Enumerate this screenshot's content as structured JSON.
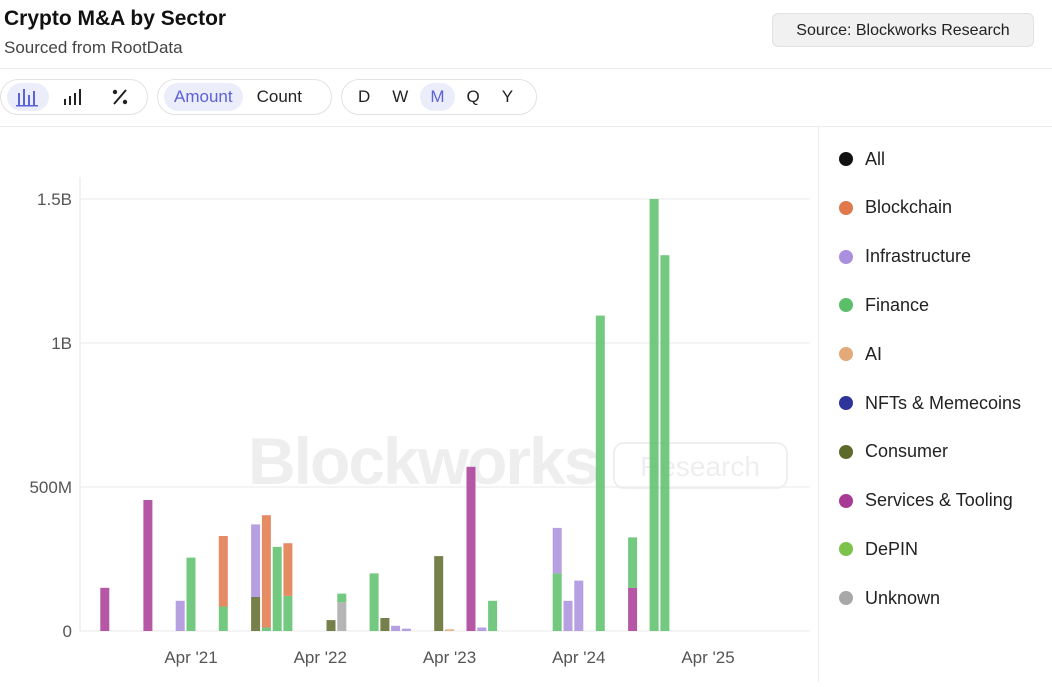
{
  "header": {
    "title": "Crypto M&A by Sector",
    "subtitle": "Sourced from RootData",
    "source_badge": "Source: Blockworks Research"
  },
  "toolbar": {
    "chart_modes": [
      {
        "icon": "grouped-bar-chart-icon",
        "active": true
      },
      {
        "icon": "bar-chart-icon",
        "active": false
      },
      {
        "icon": "percent-icon",
        "active": false
      }
    ],
    "metric_options": [
      {
        "label": "Amount",
        "active": true
      },
      {
        "label": "Count",
        "active": false
      }
    ],
    "period_options": [
      {
        "label": "D",
        "active": false
      },
      {
        "label": "W",
        "active": false
      },
      {
        "label": "M",
        "active": true
      },
      {
        "label": "Q",
        "active": false
      },
      {
        "label": "Y",
        "active": false
      }
    ]
  },
  "watermark": {
    "brand": "Blockworks",
    "tag": "Research"
  },
  "legend": [
    {
      "label": "All",
      "color": "#111111"
    },
    {
      "label": "Blockchain",
      "color": "#e0784a"
    },
    {
      "label": "Infrastructure",
      "color": "#a98fdd"
    },
    {
      "label": "Finance",
      "color": "#5bbf6a"
    },
    {
      "label": "AI",
      "color": "#e3a979"
    },
    {
      "label": "NFTs & Memecoins",
      "color": "#2f349a"
    },
    {
      "label": "Consumer",
      "color": "#5e6a2a"
    },
    {
      "label": "Services & Tooling",
      "color": "#a83a95"
    },
    {
      "label": "DePIN",
      "color": "#7dc24a"
    },
    {
      "label": "Unknown",
      "color": "#a8a8a8"
    }
  ],
  "chart_data": {
    "type": "bar",
    "stacked": true,
    "title": "Crypto M&A by Sector",
    "subtitle": "Sourced from RootData",
    "xlabel": "",
    "ylabel": "",
    "ylim": [
      0,
      1500000000
    ],
    "y_ticks": [
      {
        "value": 0,
        "label": "0"
      },
      {
        "value": 500000000,
        "label": "500M"
      },
      {
        "value": 1000000000,
        "label": "1B"
      },
      {
        "value": 1500000000,
        "label": "1.5B"
      }
    ],
    "x_ticks": [
      {
        "date": "2021-04",
        "label": "Apr '21"
      },
      {
        "date": "2022-04",
        "label": "Apr '22"
      },
      {
        "date": "2023-04",
        "label": "Apr '23"
      },
      {
        "date": "2024-04",
        "label": "Apr '24"
      },
      {
        "date": "2025-04",
        "label": "Apr '25"
      }
    ],
    "x_range": [
      "2020-07",
      "2025-05"
    ],
    "grid": true,
    "legend_position": "right",
    "bars": [
      {
        "date": "2020-08",
        "segments": [
          {
            "series": "Services & Tooling",
            "value": 150000000
          }
        ]
      },
      {
        "date": "2020-12",
        "segments": [
          {
            "series": "Services & Tooling",
            "value": 455000000
          }
        ]
      },
      {
        "date": "2021-03",
        "segments": [
          {
            "series": "Infrastructure",
            "value": 105000000
          }
        ]
      },
      {
        "date": "2021-04",
        "segments": [
          {
            "series": "Finance",
            "value": 255000000
          }
        ]
      },
      {
        "date": "2021-07",
        "segments": [
          {
            "series": "Finance",
            "value": 85000000
          },
          {
            "series": "Blockchain",
            "value": 245000000
          }
        ]
      },
      {
        "date": "2021-10",
        "segments": [
          {
            "series": "Consumer",
            "value": 118000000
          },
          {
            "series": "Infrastructure",
            "value": 252000000
          }
        ]
      },
      {
        "date": "2021-11",
        "segments": [
          {
            "series": "Finance",
            "value": 12000000
          },
          {
            "series": "Blockchain",
            "value": 390000000
          }
        ]
      },
      {
        "date": "2021-12",
        "segments": [
          {
            "series": "Finance",
            "value": 292000000
          }
        ]
      },
      {
        "date": "2022-01",
        "segments": [
          {
            "series": "Finance",
            "value": 122000000
          },
          {
            "series": "Blockchain",
            "value": 183000000
          }
        ]
      },
      {
        "date": "2022-05",
        "segments": [
          {
            "series": "Consumer",
            "value": 38000000
          }
        ]
      },
      {
        "date": "2022-06",
        "segments": [
          {
            "series": "Unknown",
            "value": 100000000
          },
          {
            "series": "Finance",
            "value": 30000000
          }
        ]
      },
      {
        "date": "2022-09",
        "segments": [
          {
            "series": "Finance",
            "value": 200000000
          }
        ]
      },
      {
        "date": "2022-10",
        "segments": [
          {
            "series": "Consumer",
            "value": 45000000
          }
        ]
      },
      {
        "date": "2022-11",
        "segments": [
          {
            "series": "Infrastructure",
            "value": 18000000
          }
        ]
      },
      {
        "date": "2022-12",
        "segments": [
          {
            "series": "Infrastructure",
            "value": 8000000
          }
        ]
      },
      {
        "date": "2023-03",
        "segments": [
          {
            "series": "Consumer",
            "value": 260000000
          }
        ]
      },
      {
        "date": "2023-04",
        "segments": [
          {
            "series": "AI",
            "value": 6000000
          }
        ]
      },
      {
        "date": "2023-06",
        "segments": [
          {
            "series": "Services & Tooling",
            "value": 570000000
          }
        ]
      },
      {
        "date": "2023-07",
        "segments": [
          {
            "series": "Infrastructure",
            "value": 12000000
          }
        ]
      },
      {
        "date": "2023-08",
        "segments": [
          {
            "series": "Finance",
            "value": 105000000
          }
        ]
      },
      {
        "date": "2024-02",
        "segments": [
          {
            "series": "Finance",
            "value": 200000000
          },
          {
            "series": "Infrastructure",
            "value": 158000000
          }
        ]
      },
      {
        "date": "2024-03",
        "segments": [
          {
            "series": "Infrastructure",
            "value": 105000000
          }
        ]
      },
      {
        "date": "2024-04",
        "segments": [
          {
            "series": "Infrastructure",
            "value": 175000000
          }
        ]
      },
      {
        "date": "2024-06",
        "segments": [
          {
            "series": "Finance",
            "value": 1095000000
          }
        ]
      },
      {
        "date": "2024-09",
        "segments": [
          {
            "series": "Services & Tooling",
            "value": 150000000
          },
          {
            "series": "Finance",
            "value": 175000000
          }
        ]
      },
      {
        "date": "2024-11",
        "segments": [
          {
            "series": "Finance",
            "value": 1500000000
          }
        ]
      },
      {
        "date": "2024-12",
        "segments": [
          {
            "series": "Finance",
            "value": 1305000000
          }
        ]
      }
    ]
  }
}
